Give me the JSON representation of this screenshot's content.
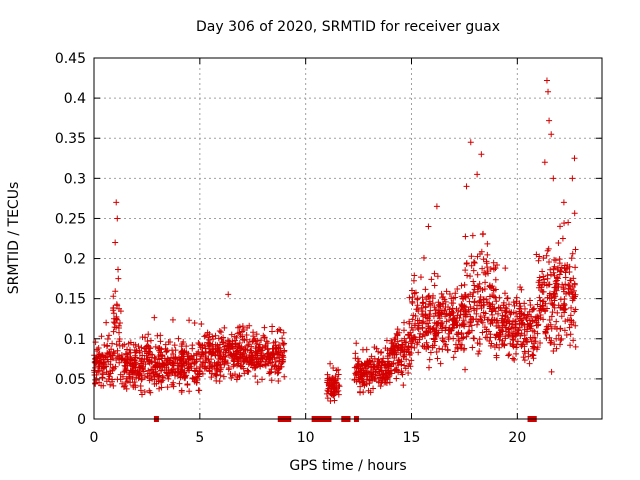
{
  "chart_data": {
    "type": "scatter",
    "title": "Day 306 of 2020, SRMTID for receiver guax",
    "xlabel": "GPS time / hours",
    "ylabel": "SRMTID / TECUs",
    "xlim": [
      0,
      24
    ],
    "ylim": [
      0,
      0.45
    ],
    "xticks": [
      0,
      5,
      10,
      15,
      20
    ],
    "yticks": [
      0,
      0.05,
      0.1,
      0.15,
      0.2,
      0.25,
      0.3,
      0.35,
      0.4,
      0.45
    ],
    "grid": true,
    "marker": "plus",
    "color": "#d40000",
    "series": [
      {
        "name": "SRMTID",
        "segments": [
          {
            "t0": 0.0,
            "t1": 0.9,
            "mean": 0.07,
            "spread": 0.03
          },
          {
            "t0": 0.9,
            "t1": 1.3,
            "mean": 0.1,
            "spread": 0.06
          },
          {
            "t0": 1.3,
            "t1": 5.0,
            "mean": 0.065,
            "spread": 0.03
          },
          {
            "t0": 5.0,
            "t1": 9.0,
            "mean": 0.08,
            "spread": 0.03
          },
          {
            "t0": 11.0,
            "t1": 11.6,
            "mean": 0.04,
            "spread": 0.015
          },
          {
            "t0": 12.3,
            "t1": 14.0,
            "mean": 0.06,
            "spread": 0.025
          },
          {
            "t0": 14.0,
            "t1": 15.0,
            "mean": 0.085,
            "spread": 0.035
          },
          {
            "t0": 15.0,
            "t1": 17.5,
            "mean": 0.12,
            "spread": 0.05
          },
          {
            "t0": 17.5,
            "t1": 19.0,
            "mean": 0.15,
            "spread": 0.07
          },
          {
            "t0": 19.0,
            "t1": 21.0,
            "mean": 0.115,
            "spread": 0.04
          },
          {
            "t0": 21.0,
            "t1": 22.8,
            "mean": 0.15,
            "spread": 0.07
          }
        ],
        "spikes": [
          {
            "x": 1.05,
            "y": 0.27
          },
          {
            "x": 1.1,
            "y": 0.25
          },
          {
            "x": 1.0,
            "y": 0.22
          },
          {
            "x": 1.15,
            "y": 0.175
          },
          {
            "x": 17.8,
            "y": 0.345
          },
          {
            "x": 17.6,
            "y": 0.29
          },
          {
            "x": 18.3,
            "y": 0.33
          },
          {
            "x": 18.1,
            "y": 0.305
          },
          {
            "x": 21.4,
            "y": 0.422
          },
          {
            "x": 21.45,
            "y": 0.408
          },
          {
            "x": 21.5,
            "y": 0.372
          },
          {
            "x": 21.6,
            "y": 0.355
          },
          {
            "x": 21.3,
            "y": 0.32
          },
          {
            "x": 21.7,
            "y": 0.3
          },
          {
            "x": 22.7,
            "y": 0.325
          },
          {
            "x": 22.6,
            "y": 0.3
          },
          {
            "x": 22.2,
            "y": 0.27
          },
          {
            "x": 16.2,
            "y": 0.265
          },
          {
            "x": 15.8,
            "y": 0.24
          },
          {
            "x": 20.9,
            "y": 0.205
          },
          {
            "x": 22.4,
            "y": 0.245
          }
        ]
      }
    ],
    "zero_markers": [
      2.95,
      8.8,
      8.95,
      9.05,
      9.2,
      10.4,
      10.6,
      10.8,
      11.0,
      11.1,
      11.8,
      12.0,
      12.4,
      20.6,
      20.8
    ]
  }
}
